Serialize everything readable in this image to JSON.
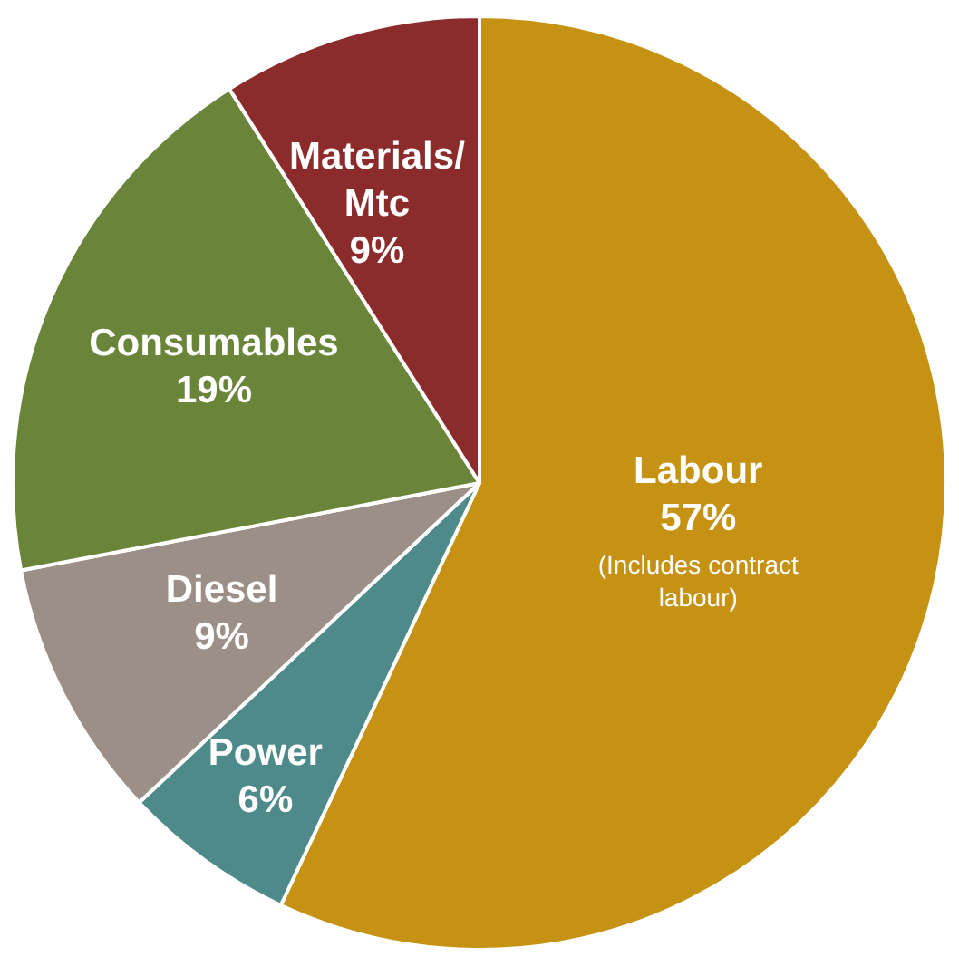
{
  "chart_data": {
    "type": "pie",
    "categories": [
      "Labour",
      "Power",
      "Diesel",
      "Consumables",
      "Materials/Mtc"
    ],
    "values": [
      57,
      6,
      9,
      19,
      9
    ],
    "colors": [
      "#c69214",
      "#4f8a8b",
      "#9b8f87",
      "#6a843a",
      "#8b2b2b"
    ],
    "value_labels": [
      "57%",
      "6%",
      "9%",
      "19%",
      "9%"
    ],
    "legend": false,
    "annotations": [
      "(Includes contract labour)"
    ]
  }
}
